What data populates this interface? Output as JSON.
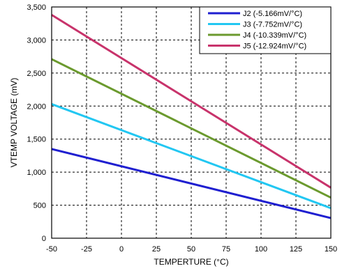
{
  "chart_data": {
    "type": "line",
    "title": "",
    "xlabel": "TEMPERTURE (°C)",
    "ylabel": "VTEMP VOLTAGE (mV)",
    "xlim": [
      -50,
      150
    ],
    "ylim": [
      0,
      3500
    ],
    "xticks": [
      -50,
      -25,
      0,
      25,
      50,
      75,
      100,
      125,
      150
    ],
    "xtick_labels": [
      "-50",
      "-25",
      "0",
      "25",
      "50",
      "75",
      "100",
      "125",
      "150"
    ],
    "yticks": [
      0,
      500,
      1000,
      1500,
      2000,
      2500,
      3000,
      3500
    ],
    "ytick_labels": [
      "0",
      "500",
      "1,000",
      "1,500",
      "2,000",
      "2,500",
      "3,000",
      "3,500"
    ],
    "grid": true,
    "legend_position": "top-right",
    "series": [
      {
        "name": "J2 (-5.166mV/°C)",
        "color": "#1f1fd0",
        "x": [
          -50,
          150
        ],
        "y": [
          1350,
          305
        ]
      },
      {
        "name": "J3 (-7.752mV/°C)",
        "color": "#22c7f2",
        "x": [
          -50,
          150
        ],
        "y": [
          2030,
          455
        ]
      },
      {
        "name": "J4 (-10.339mV/°C)",
        "color": "#6b9a2e",
        "x": [
          -50,
          150
        ],
        "y": [
          2710,
          615
        ]
      },
      {
        "name": "J5 (-12.924mV/°C)",
        "color": "#c8336b",
        "x": [
          -50,
          150
        ],
        "y": [
          3380,
          765
        ]
      }
    ]
  }
}
